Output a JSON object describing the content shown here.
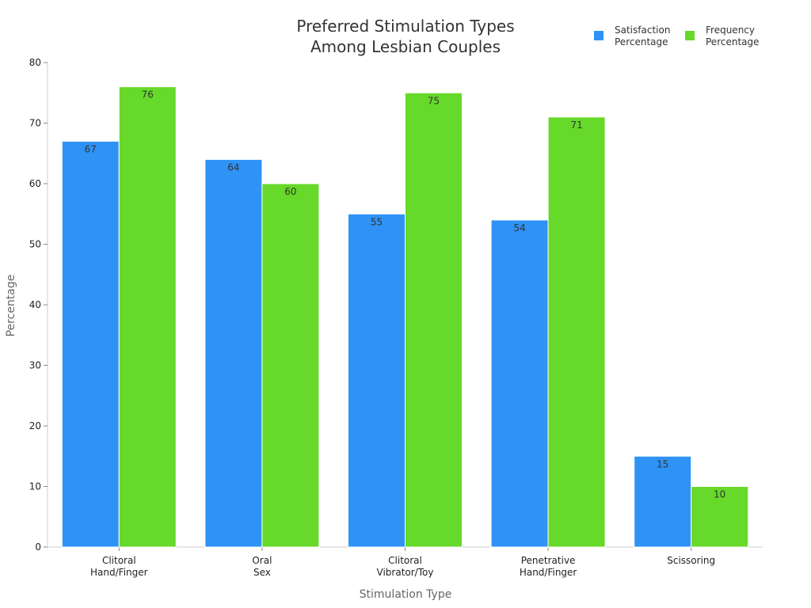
{
  "chart_data": {
    "type": "bar",
    "title": [
      "Preferred Stimulation Types",
      "Among Lesbian Couples"
    ],
    "xlabel": "Stimulation Type",
    "ylabel": "Percentage",
    "ylim": [
      0,
      80
    ],
    "yticks": [
      0,
      10,
      20,
      30,
      40,
      50,
      60,
      70,
      80
    ],
    "categories": [
      [
        "Clitoral",
        "Hand/Finger"
      ],
      [
        "Oral",
        "Sex"
      ],
      [
        "Clitoral",
        "Vibrator/Toy"
      ],
      [
        "Penetrative",
        "Hand/Finger"
      ],
      [
        "Scissoring"
      ]
    ],
    "series": [
      {
        "name": [
          "Satisfaction",
          "Percentage"
        ],
        "color": "#2f92f5",
        "values": [
          67,
          64,
          55,
          54,
          15
        ]
      },
      {
        "name": [
          "Frequency",
          "Percentage"
        ],
        "color": "#66d92a",
        "values": [
          76,
          60,
          75,
          71,
          10
        ]
      }
    ],
    "legend_position": "top-right",
    "grid": false
  }
}
